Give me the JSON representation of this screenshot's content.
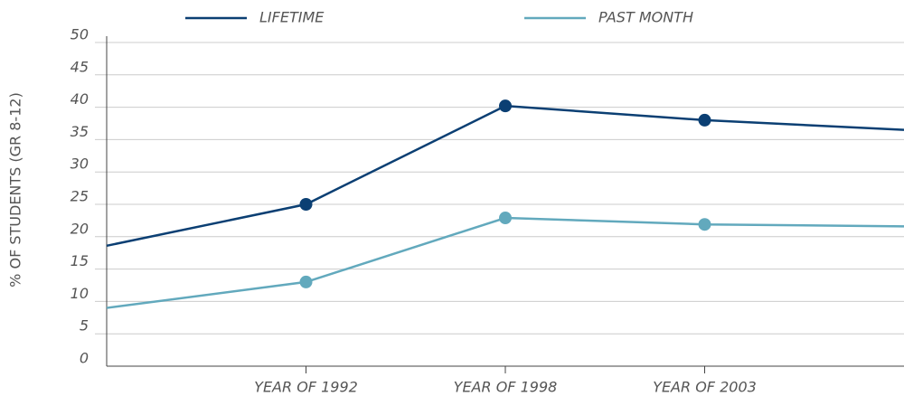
{
  "chart_data": {
    "type": "line",
    "y_label": "% OF STUDENTS (GR 8-12)",
    "categories": [
      null,
      "YEAR OF 1992",
      "YEAR OF 1998",
      "YEAR OF 2003",
      null
    ],
    "series": [
      {
        "name": "LIFETIME",
        "color": "#0b3f73",
        "values": [
          18.6,
          25,
          40.2,
          38,
          36.5
        ]
      },
      {
        "name": "PAST MONTH",
        "color": "#62a9bd",
        "values": [
          9,
          13,
          22.9,
          21.9,
          21.6
        ]
      }
    ],
    "ylim": [
      0,
      50
    ],
    "yticks": [
      0,
      5,
      10,
      15,
      20,
      25,
      30,
      35,
      40,
      45,
      50
    ],
    "grid": true
  }
}
